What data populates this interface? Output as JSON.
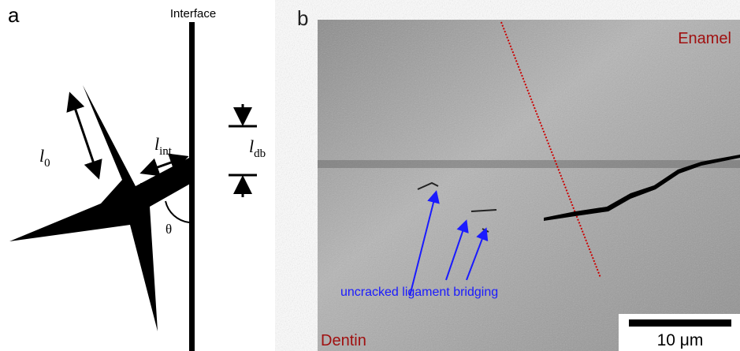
{
  "panel_a": {
    "label": "a",
    "interface_label": "Interface",
    "l0": {
      "symbol": "l",
      "subscript": "0"
    },
    "lint": {
      "symbol": "l",
      "subscript": "int"
    },
    "ldb": {
      "symbol": "l",
      "subscript": "db"
    },
    "angle": "θ"
  },
  "panel_b": {
    "label": "b",
    "top_label": "Enamel",
    "bottom_label": "Dentin",
    "annotation": "uncracked ligament bridging",
    "scale_bar": "10 μm"
  }
}
